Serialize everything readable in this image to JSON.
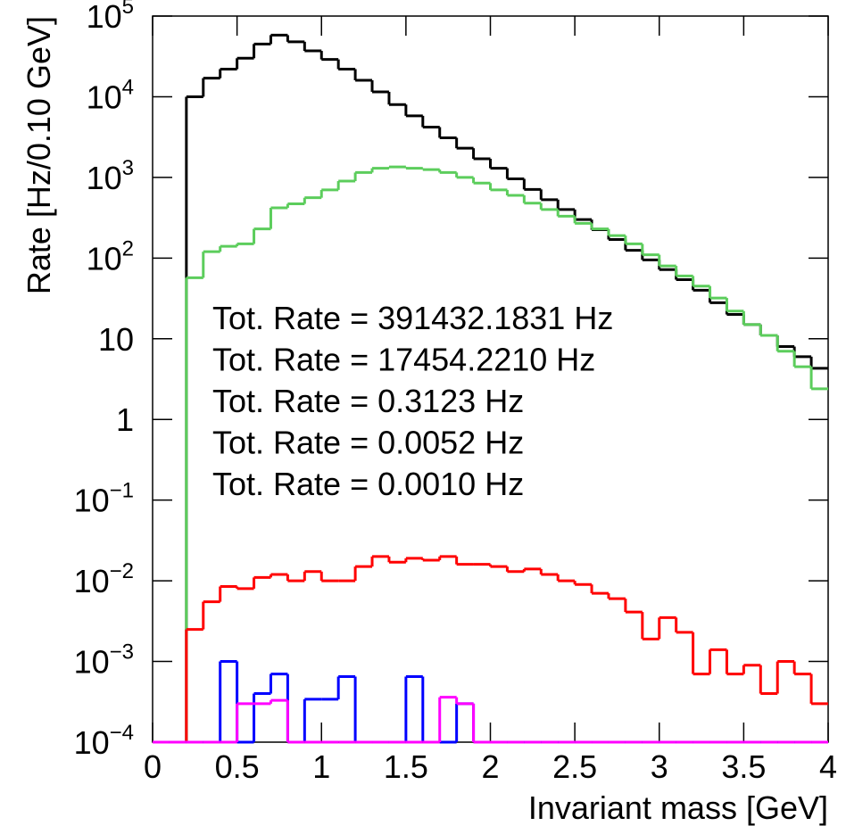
{
  "chart_data": {
    "type": "histogram",
    "log_y": true,
    "x_label": "Invariant mass [GeV]",
    "y_label": "Rate [Hz/0.10 GeV]",
    "bins": [
      0,
      0.1,
      0.2,
      0.3,
      0.4,
      0.5,
      0.6,
      0.7,
      0.8,
      0.9,
      1,
      1.1,
      1.2,
      1.3,
      1.4,
      1.5,
      1.6,
      1.7,
      1.8,
      1.9,
      2,
      2.1,
      2.2,
      2.3,
      2.4,
      2.5,
      2.6,
      2.7,
      2.8,
      2.9,
      3,
      3.1,
      3.2,
      3.3,
      3.4,
      3.5,
      3.6,
      3.7,
      3.8,
      3.9,
      4
    ],
    "xlim": [
      0,
      4
    ],
    "xticks": [
      0,
      0.5,
      1,
      1.5,
      2,
      2.5,
      3,
      3.5,
      4
    ],
    "ylim": [
      0.0001,
      100000
    ],
    "yticks": [
      {
        "value": 0.0001,
        "label": "10^−4"
      },
      {
        "value": 0.001,
        "label": "10^−3"
      },
      {
        "value": 0.01,
        "label": "10^−2"
      },
      {
        "value": 0.1,
        "label": "10^−1"
      },
      1,
      10,
      {
        "value": 100,
        "label": "10^2"
      },
      {
        "value": 1000,
        "label": "10^3"
      },
      {
        "value": 10000,
        "label": "10^4"
      },
      {
        "value": 100000,
        "label": "10^5"
      }
    ],
    "series": [
      {
        "color": "#000000",
        "values": [
          0,
          0,
          10000,
          17000,
          22000,
          30000,
          45000,
          58000,
          48000,
          37000,
          29000,
          22000,
          16000,
          11500,
          8000,
          5800,
          4200,
          3100,
          2300,
          1700,
          1300,
          960,
          710,
          530,
          400,
          300,
          225,
          170,
          125,
          95,
          72,
          54,
          40,
          28,
          20,
          15,
          11,
          8,
          6,
          4.3
        ]
      },
      {
        "color": "#5ccd5c",
        "values": [
          0,
          0,
          57,
          120,
          140,
          150,
          230,
          420,
          470,
          560,
          700,
          900,
          1150,
          1300,
          1350,
          1300,
          1250,
          1150,
          1000,
          850,
          700,
          600,
          480,
          400,
          330,
          270,
          230,
          190,
          150,
          110,
          80,
          60,
          45,
          32,
          22,
          15,
          11,
          7,
          4.5,
          2.4
        ]
      },
      {
        "color": "#ff0000",
        "values": [
          0,
          0,
          0.0025,
          0.0055,
          0.0085,
          0.008,
          0.011,
          0.012,
          0.01,
          0.013,
          0.01,
          0.01,
          0.015,
          0.02,
          0.017,
          0.019,
          0.018,
          0.02,
          0.016,
          0.016,
          0.015,
          0.013,
          0.014,
          0.012,
          0.01,
          0.009,
          0.007,
          0.006,
          0.0041,
          0.0019,
          0.0035,
          0.0023,
          0.0007,
          0.0014,
          0.0007,
          0.0009,
          0.0004,
          0.001,
          0.0007,
          0.0003
        ]
      },
      {
        "color": "#0000ff",
        "values": [
          0,
          0,
          0,
          0,
          0.001,
          0,
          0.0004,
          0.0007,
          0,
          0.00034,
          0.00034,
          0.00065,
          0,
          0,
          0,
          0.00065,
          0,
          0,
          0.0003,
          0,
          0,
          0,
          0,
          0,
          0,
          0,
          0,
          0,
          0,
          0,
          0,
          0,
          0,
          0,
          0,
          0,
          0,
          0,
          0,
          0
        ]
      },
      {
        "color": "#ff00ff",
        "values": [
          0,
          0,
          0,
          0,
          0,
          0.0003,
          0.0003,
          0.00033,
          0,
          0,
          0,
          0,
          0,
          0,
          0,
          0,
          0,
          0.00036,
          0.0003,
          0,
          0,
          0,
          0,
          0,
          0,
          0,
          0,
          0,
          0,
          0,
          0,
          0,
          0,
          0,
          0,
          0,
          0,
          0,
          0,
          0
        ]
      }
    ],
    "annotations": [
      {
        "text": "Tot. Rate = 391432.1831 Hz",
        "color": "#000000"
      },
      {
        "text": "Tot. Rate = 17454.2210 Hz",
        "color": "#5ccd5c"
      },
      {
        "text": "Tot. Rate = 0.3123 Hz",
        "color": "#ff0000"
      },
      {
        "text": "Tot. Rate = 0.0052 Hz",
        "color": "#0000ff"
      },
      {
        "text": "Tot. Rate = 0.0010 Hz",
        "color": "#ff00ff"
      }
    ]
  }
}
